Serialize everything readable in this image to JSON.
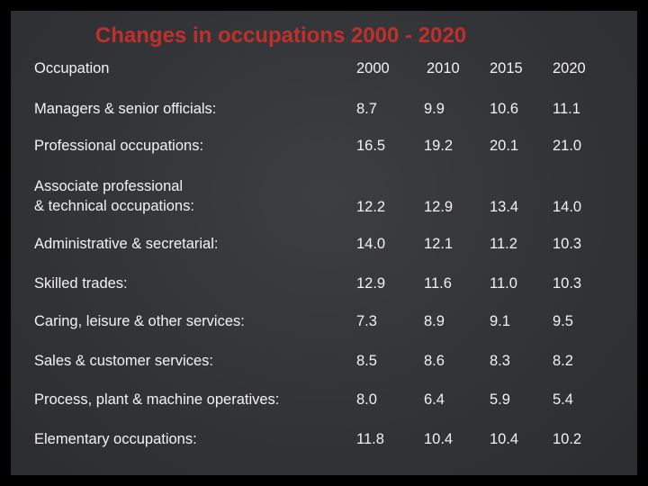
{
  "title": "Changes in occupations 2000 - 2020",
  "table": {
    "header": {
      "label": "Occupation",
      "years": [
        "2000",
        "2010",
        "2015",
        "2020"
      ]
    },
    "rows": [
      {
        "label": [
          "Managers & senior officials:"
        ],
        "values": [
          "8.7",
          "9.9",
          "10.6",
          "11.1"
        ]
      },
      {
        "label": [
          "Professional occupations:"
        ],
        "values": [
          "16.5",
          "19.2",
          "20.1",
          "21.0"
        ]
      },
      {
        "label": [
          "Associate professional",
          "& technical occupations:"
        ],
        "values": [
          "12.2",
          "12.9",
          "13.4",
          "14.0"
        ]
      },
      {
        "label": [
          "Administrative & secretarial:"
        ],
        "values": [
          "14.0",
          "12.1",
          "11.2",
          "10.3"
        ]
      },
      {
        "label": [
          "Skilled trades:"
        ],
        "values": [
          "12.9",
          "11.6",
          "11.0",
          "10.3"
        ]
      },
      {
        "label": [
          "Caring, leisure & other services:"
        ],
        "values": [
          "7.3",
          "8.9",
          "9.1",
          "9.5"
        ]
      },
      {
        "label": [
          "Sales & customer services:"
        ],
        "values": [
          "8.5",
          "8.6",
          "8.3",
          "8.2"
        ]
      },
      {
        "label": [
          "Process, plant & machine operatives:"
        ],
        "values": [
          "8.0",
          "6.4",
          "5.9",
          "5.4"
        ]
      },
      {
        "label": [
          "Elementary occupations:"
        ],
        "values": [
          "11.8",
          "10.4",
          "10.4",
          "10.2"
        ]
      }
    ]
  },
  "colors": {
    "background": "#333436",
    "title": "#c0302b",
    "text": "#f2f2f2"
  }
}
